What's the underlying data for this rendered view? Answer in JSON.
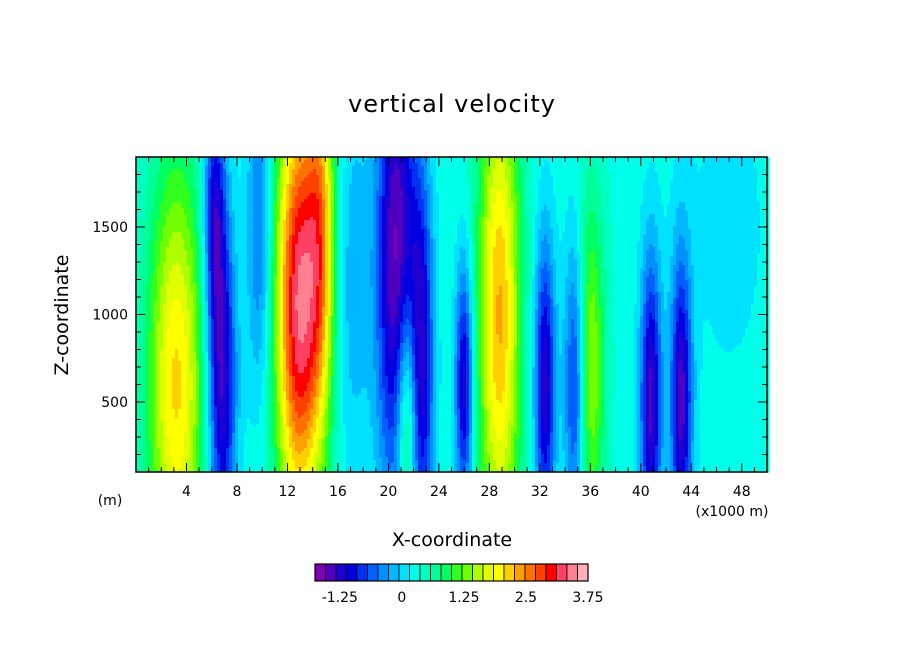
{
  "chart_data": {
    "type": "heatmap",
    "title": "vertical velocity",
    "xlabel": "X-coordinate",
    "ylabel": "Z-coordinate",
    "x_unit_left": "(m)",
    "x_unit_right": "(x1000 m)",
    "xlim": [
      0,
      50
    ],
    "ylim": [
      100,
      1900
    ],
    "x_ticks": [
      4,
      8,
      12,
      16,
      20,
      24,
      28,
      32,
      36,
      40,
      44,
      48
    ],
    "y_ticks": [
      500,
      1000,
      1500
    ],
    "colorbar": {
      "levels": [
        -1.75,
        3.75
      ],
      "tick_values": [
        -1.25,
        0,
        1.25,
        2.5,
        3.75
      ],
      "tick_labels": [
        "-1.25",
        "0",
        "1.25",
        "2.5",
        "3.75"
      ],
      "colors": [
        "#7f00b2",
        "#5000c0",
        "#2000d0",
        "#0000e0",
        "#0030f0",
        "#0060ff",
        "#0090ff",
        "#00b8ff",
        "#00e0ff",
        "#00ffe8",
        "#00ffc0",
        "#00ff98",
        "#00ff60",
        "#30ff20",
        "#70ff00",
        "#b0ff00",
        "#e0ff00",
        "#ffff00",
        "#ffd000",
        "#ffa000",
        "#ff7000",
        "#ff4000",
        "#ff0000",
        "#ff4060",
        "#ff8090",
        "#ffb0b8"
      ],
      "background": "#00ffe8"
    },
    "background_value": 0.3,
    "features": [
      {
        "x": 3.2,
        "width": 1.6,
        "amplitude": 1.8,
        "z_center": 600,
        "z_spread": 900
      },
      {
        "x": 6.8,
        "width": 0.8,
        "amplitude": -1.7,
        "z_center": 600,
        "z_spread": 700
      },
      {
        "x": 6.2,
        "width": 0.6,
        "amplitude": -1.3,
        "z_center": 1600,
        "z_spread": 500
      },
      {
        "x": 9.8,
        "width": 0.7,
        "amplitude": -0.9,
        "z_center": 1500,
        "z_spread": 700
      },
      {
        "x": 12.9,
        "width": 1.3,
        "amplitude": 3.0,
        "z_center": 1050,
        "z_spread": 900
      },
      {
        "x": 14.7,
        "width": 0.8,
        "amplitude": 1.5,
        "z_center": 1500,
        "z_spread": 800
      },
      {
        "x": 17.2,
        "width": 1.0,
        "amplitude": -0.5,
        "z_center": 1200,
        "z_spread": 800
      },
      {
        "x": 20.6,
        "width": 1.1,
        "amplitude": -1.9,
        "z_center": 1300,
        "z_spread": 1000
      },
      {
        "x": 21.5,
        "width": 0.6,
        "amplitude": 1.4,
        "z_center": 400,
        "z_spread": 500
      },
      {
        "x": 22.6,
        "width": 0.7,
        "amplitude": -1.5,
        "z_center": 700,
        "z_spread": 800
      },
      {
        "x": 26.0,
        "width": 0.5,
        "amplitude": -1.6,
        "z_center": 600,
        "z_spread": 500
      },
      {
        "x": 28.8,
        "width": 1.2,
        "amplitude": 2.0,
        "z_center": 1000,
        "z_spread": 1000
      },
      {
        "x": 32.4,
        "width": 0.6,
        "amplitude": -1.6,
        "z_center": 600,
        "z_spread": 600
      },
      {
        "x": 34.8,
        "width": 0.6,
        "amplitude": -1.3,
        "z_center": 600,
        "z_spread": 600
      },
      {
        "x": 36.0,
        "width": 0.8,
        "amplitude": 1.2,
        "z_center": 700,
        "z_spread": 700
      },
      {
        "x": 40.8,
        "width": 0.6,
        "amplitude": -1.7,
        "z_center": 500,
        "z_spread": 600
      },
      {
        "x": 43.2,
        "width": 0.6,
        "amplitude": -1.7,
        "z_center": 500,
        "z_spread": 600
      },
      {
        "x": 47.0,
        "width": 3.0,
        "amplitude": -0.2,
        "z_center": 1500,
        "z_spread": 900
      }
    ]
  }
}
